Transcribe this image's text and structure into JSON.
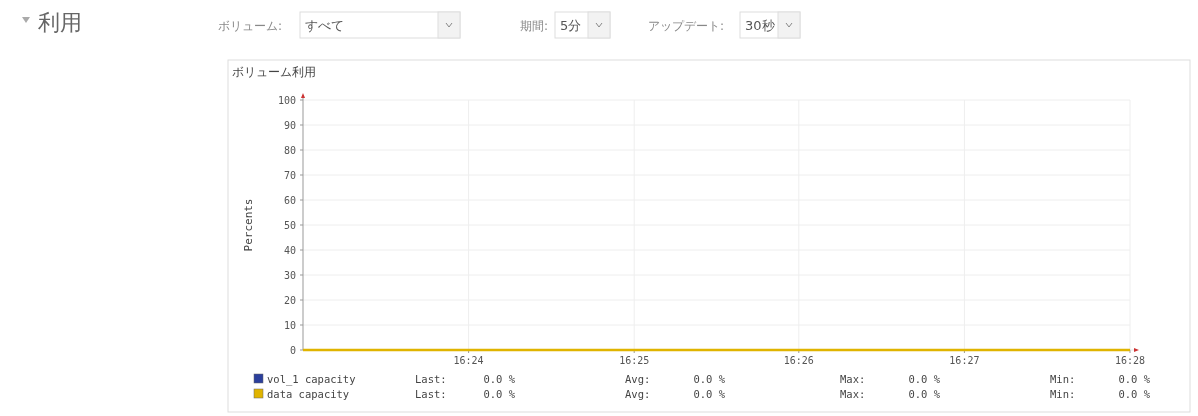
{
  "chart_data": {
    "type": "line",
    "title": "ボリューム利用",
    "ylabel": "Percents",
    "x": [
      16.3833,
      16.4667
    ],
    "xlim": [
      16.3833,
      16.4667
    ],
    "xticks": [
      {
        "value": 16.4,
        "label": "16:24"
      },
      {
        "value": 16.4167,
        "label": "16:25"
      },
      {
        "value": 16.4333,
        "label": "16:26"
      },
      {
        "value": 16.45,
        "label": "16:27"
      },
      {
        "value": 16.4667,
        "label": "16:28"
      }
    ],
    "ylim": [
      0,
      100
    ],
    "yticks": [
      0,
      10,
      20,
      30,
      40,
      50,
      60,
      70,
      80,
      90,
      100
    ],
    "grid": true,
    "legend": "bottom",
    "series": [
      {
        "name": "vol_1 capacity",
        "color": "#2b3f9c",
        "values": [
          null,
          null
        ]
      },
      {
        "name": "data  capacity",
        "color": "#e0b400",
        "values": [
          0,
          0
        ]
      }
    ],
    "annotations": [
      "利用",
      "ボリューム:",
      "すべて",
      "期間:",
      "5分",
      "アップデート:",
      "30秒",
      "Last:",
      "0.0 %",
      "Avg:",
      "0.0 %",
      "Max:",
      "0.0 %",
      "Min:",
      "0.0 %",
      "Last:",
      "0.0 %",
      "Avg:",
      "0.0 %",
      "Max:",
      "0.0 %",
      "Min:",
      "0.0 %"
    ]
  }
}
